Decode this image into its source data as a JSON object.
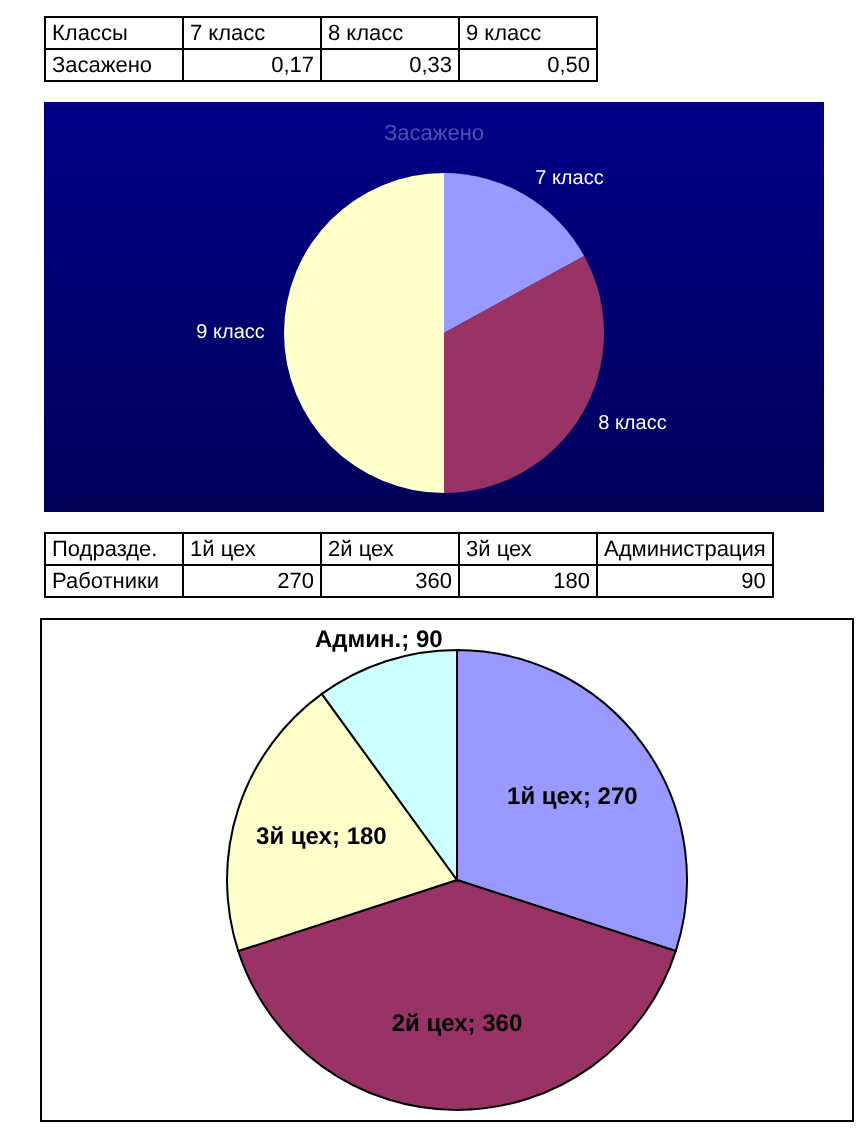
{
  "chart_data": [
    {
      "type": "other",
      "annotations": [
        "Классы",
        "7 класс",
        "8 класс",
        "9 класс",
        "Засажено",
        "0,17",
        "0,33",
        "0,50"
      ]
    },
    {
      "type": "pie",
      "title": "Засажено",
      "categories": [
        "7 класс",
        "8 класс",
        "9 класс"
      ],
      "values": [
        0.17,
        0.33,
        0.5
      ],
      "colors": [
        "#9999ff",
        "#993366",
        "#ffffcc"
      ]
    },
    {
      "type": "other",
      "annotations": [
        "Подразде.",
        "1й цех",
        "2й цех",
        "3й цех",
        "Администрация",
        "Работники",
        "270",
        "360",
        "180",
        "90"
      ]
    },
    {
      "type": "pie",
      "categories": [
        null,
        null,
        null,
        null
      ],
      "values": [
        270,
        360,
        180,
        90
      ],
      "value_labels": [
        "1й цех; 270",
        "2й цех; 360",
        "3й цех; 180",
        "Админ.; 90"
      ],
      "colors": [
        "#9999ff",
        "#993366",
        "#ffffcc",
        "#ccffff"
      ]
    }
  ]
}
